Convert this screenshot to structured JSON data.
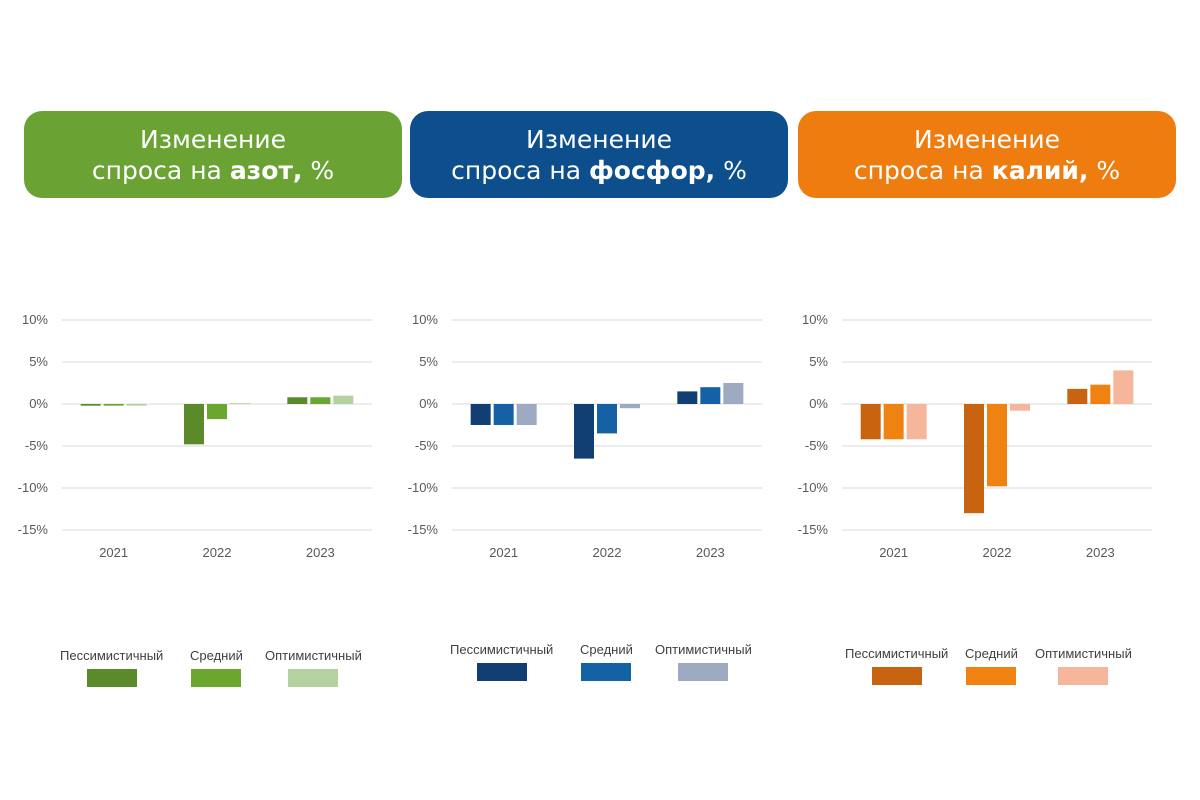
{
  "headers": [
    {
      "line1": "Изменение",
      "prefix": "спроса на ",
      "bold": "азот,",
      "suffix": " %",
      "color": "#6aa333"
    },
    {
      "line1": "Изменение",
      "prefix": "спроса на ",
      "bold": "фосфор,",
      "suffix": " %",
      "color": "#0c4f8c"
    },
    {
      "line1": "Изменение",
      "prefix": "спроса на ",
      "bold": "калий,",
      "suffix": " %",
      "color": "#ee7c0e"
    }
  ],
  "legends": [
    {
      "items": [
        {
          "label": "Пессимистичный",
          "color": "#5a8a2a"
        },
        {
          "label": "Средний",
          "color": "#6ba62e"
        },
        {
          "label": "Оптимистичный",
          "color": "#b6d1a0"
        }
      ]
    },
    {
      "items": [
        {
          "label": "Пессимистичный",
          "color": "#123f73"
        },
        {
          "label": "Средний",
          "color": "#1561a5"
        },
        {
          "label": "Оптимистичный",
          "color": "#9ea9c2"
        }
      ]
    },
    {
      "items": [
        {
          "label": "Пессимистичный",
          "color": "#c8640f"
        },
        {
          "label": "Средний",
          "color": "#f08211"
        },
        {
          "label": "Оптимистичный",
          "color": "#f5b69b"
        }
      ]
    }
  ],
  "chart_data": [
    {
      "type": "bar",
      "categories": [
        "2021",
        "2022",
        "2023"
      ],
      "ylim": [
        -15,
        10
      ],
      "yticks": [
        10,
        5,
        0,
        -5,
        -10,
        -15
      ],
      "ytick_labels": [
        "10%",
        "5%",
        "0%",
        "-5%",
        "-10%",
        "-15%"
      ],
      "grid": true,
      "legend": "bottom",
      "series": [
        {
          "name": "Пессимистичный",
          "color": "#5a8a2a",
          "values": [
            -0.2,
            -4.8,
            0.8
          ]
        },
        {
          "name": "Средний",
          "color": "#6ba62e",
          "values": [
            -0.2,
            -1.8,
            0.8
          ]
        },
        {
          "name": "Оптимистичный",
          "color": "#b6d1a0",
          "values": [
            -0.2,
            0.1,
            1.0
          ]
        }
      ]
    },
    {
      "type": "bar",
      "categories": [
        "2021",
        "2022",
        "2023"
      ],
      "ylim": [
        -15,
        10
      ],
      "yticks": [
        10,
        5,
        0,
        -5,
        -10,
        -15
      ],
      "ytick_labels": [
        "10%",
        "5%",
        "0%",
        "-5%",
        "-10%",
        "-15%"
      ],
      "grid": true,
      "legend": "bottom",
      "series": [
        {
          "name": "Пессимистичный",
          "color": "#123f73",
          "values": [
            -2.5,
            -6.5,
            1.5
          ]
        },
        {
          "name": "Средний",
          "color": "#1561a5",
          "values": [
            -2.5,
            -3.5,
            2.0
          ]
        },
        {
          "name": "Оптимистичный",
          "color": "#9ea9c2",
          "values": [
            -2.5,
            -0.5,
            2.5
          ]
        }
      ]
    },
    {
      "type": "bar",
      "categories": [
        "2021",
        "2022",
        "2023"
      ],
      "ylim": [
        -15,
        10
      ],
      "yticks": [
        10,
        5,
        0,
        -5,
        -10,
        -15
      ],
      "ytick_labels": [
        "10%",
        "5%",
        "0%",
        "-5%",
        "-10%",
        "-15%"
      ],
      "grid": true,
      "legend": "bottom",
      "series": [
        {
          "name": "Пессимистичный",
          "color": "#c8640f",
          "values": [
            -4.2,
            -13.0,
            1.8
          ]
        },
        {
          "name": "Средний",
          "color": "#f08211",
          "values": [
            -4.2,
            -9.8,
            2.3
          ]
        },
        {
          "name": "Оптимистичный",
          "color": "#f5b69b",
          "values": [
            -4.2,
            -0.8,
            4.0
          ]
        }
      ]
    }
  ]
}
